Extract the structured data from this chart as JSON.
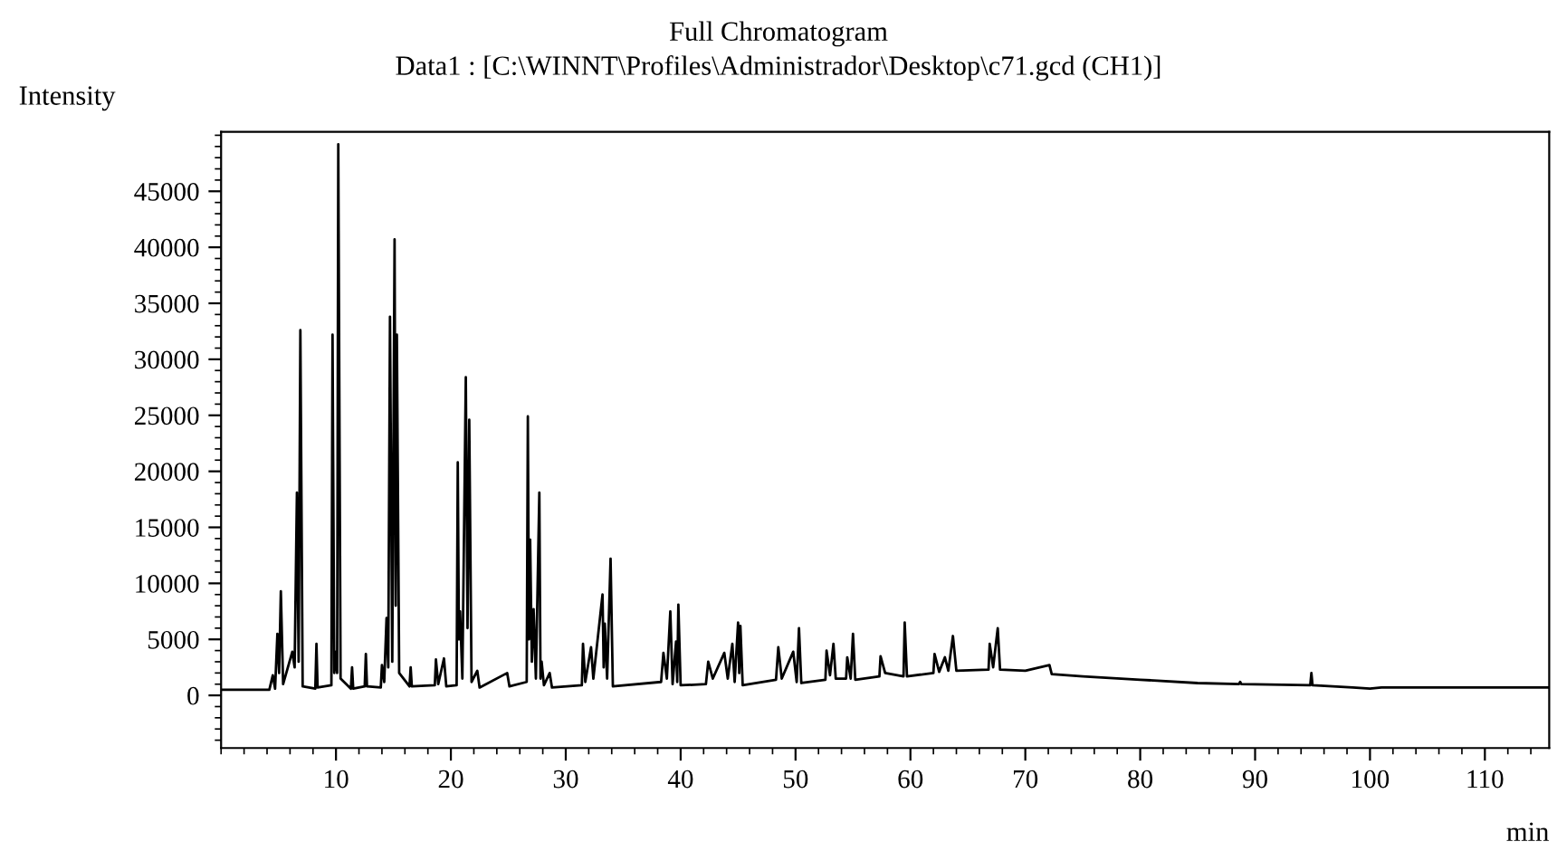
{
  "chart_data": {
    "type": "line",
    "title": "Full Chromatogram",
    "subtitle": "Data1 : [C:\\WINNT\\Profiles\\Administrador\\Desktop\\c71.gcd (CH1)]",
    "xlabel": "min",
    "ylabel": "Intensity",
    "xlim": [
      0,
      115.6
    ],
    "ylim": [
      -4700,
      50300
    ],
    "xticks": [
      10,
      20,
      30,
      40,
      50,
      60,
      70,
      80,
      90,
      100,
      110
    ],
    "yticks": [
      0,
      5000,
      10000,
      15000,
      20000,
      25000,
      30000,
      35000,
      40000,
      45000
    ],
    "grid": false,
    "marker": "none",
    "line_style": "solid",
    "series": [
      {
        "color": "#000000",
        "x": [
          0,
          4.2,
          4.5,
          4.7,
          4.9,
          5.05,
          5.2,
          5.4,
          6.2,
          6.4,
          6.6,
          6.75,
          6.9,
          7.1,
          8.2,
          8.3,
          8.4,
          9.6,
          9.7,
          9.85,
          10.0,
          10.1,
          10.2,
          10.4,
          11.3,
          11.4,
          11.5,
          12.5,
          12.6,
          12.7,
          13.9,
          14.0,
          14.2,
          14.4,
          14.55,
          14.7,
          14.9,
          15.1,
          15.2,
          15.3,
          15.5,
          16.4,
          16.5,
          16.6,
          18.6,
          18.7,
          18.9,
          19.4,
          19.6,
          20.5,
          20.6,
          20.7,
          20.8,
          21.0,
          21.3,
          21.45,
          21.6,
          21.8,
          22.3,
          22.5,
          24.9,
          25.1,
          26.6,
          26.7,
          26.8,
          26.9,
          27.05,
          27.2,
          27.4,
          27.7,
          27.8,
          27.9,
          28.1,
          28.6,
          28.8,
          31.4,
          31.5,
          31.7,
          32.2,
          32.4,
          33.2,
          33.3,
          33.4,
          33.6,
          33.9,
          34.1,
          38.3,
          38.5,
          38.8,
          39.1,
          39.3,
          39.6,
          39.7,
          39.8,
          40.0,
          42.2,
          42.4,
          42.8,
          43.8,
          44.1,
          44.5,
          44.7,
          45.0,
          45.1,
          45.2,
          45.4,
          48.3,
          48.5,
          48.8,
          49.8,
          50.1,
          50.3,
          50.5,
          52.6,
          52.7,
          53.0,
          53.3,
          53.5,
          54.4,
          54.5,
          54.8,
          55.0,
          55.2,
          57.3,
          57.4,
          57.8,
          59.4,
          59.5,
          59.7,
          62.0,
          62.1,
          62.5,
          63.0,
          63.3,
          63.7,
          64.0,
          66.8,
          66.9,
          67.2,
          67.6,
          67.8,
          70,
          72.1,
          72.3,
          75,
          80,
          85,
          88.6,
          88.7,
          88.8,
          94.8,
          94.9,
          95.0,
          98.5,
          100,
          101,
          115.6
        ],
        "values": [
          500,
          500,
          1800,
          600,
          5500,
          2000,
          9300,
          1000,
          3900,
          2500,
          18100,
          3000,
          32600,
          800,
          600,
          4600,
          700,
          900,
          32200,
          2000,
          3900,
          2000,
          49200,
          1500,
          600,
          2500,
          600,
          800,
          3700,
          800,
          700,
          2700,
          1200,
          6900,
          2500,
          33800,
          3000,
          40700,
          8000,
          32200,
          2000,
          800,
          2500,
          800,
          900,
          3200,
          1000,
          3300,
          800,
          900,
          20800,
          5000,
          7500,
          1500,
          28400,
          6000,
          24600,
          1200,
          2200,
          700,
          2000,
          800,
          1200,
          24900,
          5000,
          13900,
          3000,
          7700,
          1500,
          18100,
          1500,
          3000,
          900,
          2000,
          700,
          900,
          4600,
          1200,
          4300,
          1500,
          9000,
          2500,
          6400,
          1500,
          12200,
          800,
          1200,
          3800,
          1500,
          7500,
          1000,
          4800,
          1200,
          8100,
          900,
          1000,
          3000,
          1500,
          3800,
          1500,
          4600,
          1200,
          6500,
          2000,
          6200,
          900,
          1400,
          4300,
          1500,
          3900,
          1200,
          6000,
          1100,
          1400,
          4000,
          1800,
          4600,
          1500,
          1500,
          3400,
          1500,
          5500,
          1400,
          1700,
          3500,
          2000,
          1700,
          6500,
          1700,
          2000,
          3700,
          2100,
          3400,
          2200,
          5300,
          2200,
          2300,
          4600,
          2500,
          6000,
          2300,
          2200,
          2700,
          1900,
          1700,
          1400,
          1100,
          1000,
          1200,
          1000,
          900,
          2000,
          900,
          700,
          600,
          700,
          700
        ]
      }
    ]
  }
}
